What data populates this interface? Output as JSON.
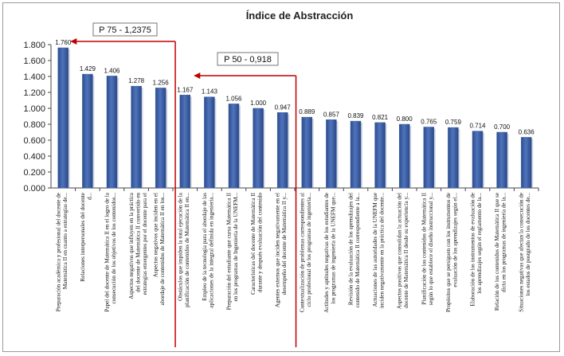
{
  "chart_data": {
    "type": "bar",
    "title": "Índice de Abstracción",
    "ylim": [
      0,
      1.8
    ],
    "yticks": [
      "0.000",
      "0.200",
      "0.400",
      "0.600",
      "0.800",
      "1.000",
      "1.200",
      "1.400",
      "1.600",
      "1.800"
    ],
    "grid": false,
    "legend": "none",
    "bar_color": "#3f62a8",
    "categories": [
      [
        "Preparación académica y profesional del docente de",
        "Matemática II en cuanto a estrategias de..."
      ],
      [
        "Relaciones interpersonales del docente",
        "d..."
      ],
      [
        "Papel del docente de Matemática II en el logro de la",
        "consecución de los objetivos de los contenidos..."
      ],
      [
        "Aspectos negativos que influyen en la práctica",
        "del docente de Matemática II convertido en",
        "estrategias emergentes por el docente para el"
      ],
      [
        "Aspectos negativos que inciden en el",
        "abordaje de contenidos de Matemática II en los..."
      ],
      [
        "Obstáculos que impiden la total ejecución de la",
        "planificación de contenidos de Matemática II en..."
      ],
      [
        "Empleo de la tecnología para el abordaje de las",
        "aplicaciones de la integral definida en ingeniería..."
      ],
      [
        "Preparación del estudiante que cursa Matemática II",
        "en los programas de Ingeniería de la UNEFM..."
      ],
      [
        "Características del docente de Matemática II",
        "durante y después evaluación del contenido"
      ],
      [
        "Agentes externos que inciden negativamente en el",
        "desempeño del docente de Matemática II y..."
      ],
      [
        "Contextualización de problemas correspondientes al",
        "ciclo profesional de los programas de ingeniería..."
      ],
      [
        "Actitudes y aptitudes negativas de los estudiantes de",
        "los programas de ingeniería de la UNEFM que..."
      ],
      [
        "Revisión de la evaluación de los aprendizajes del",
        "contenido de Matemática II correspondiente a la..."
      ],
      [
        "Actuaciones de las autoridades de la UNEFM que",
        "inciden negativamente en la práctica del docente..."
      ],
      [
        "Aspectos positivos que consolidan la actuación del",
        "docente de Matemática II desde su experiencia y..."
      ],
      [
        "Planificación de los contenidos de Matemática II",
        "según lo que establece el diseño instruccional y..."
      ],
      [
        "Propósitos que se persiguen con los instrumentos de",
        "evaluación de los aprendizajes según el..."
      ],
      [
        "Elaboración de los instrumentos de evaluación de",
        "los aprendizajes según el reglamento de la..."
      ],
      [
        "Relación de los contenidos de Matemática II que se",
        "dicta en los programas de ingeniería de la..."
      ],
      [
        "Situaciones negativas que afectan la consecución de",
        "los estados de postgrado de los docentes de..."
      ]
    ],
    "values": [
      1.76,
      1.429,
      1.406,
      1.278,
      1.256,
      1.167,
      1.143,
      1.056,
      1.0,
      0.947,
      0.889,
      0.857,
      0.839,
      0.821,
      0.8,
      0.765,
      0.759,
      0.714,
      0.7,
      0.636
    ],
    "value_labels": [
      "1.760",
      "1.429",
      "1.406",
      "1.278",
      "1.256",
      "1.167",
      "1.143",
      "1.056",
      "1.000",
      "0.947",
      "0.889",
      "0.857",
      "0.839",
      "0.821",
      "0.800",
      "0.765",
      "0.759",
      "0.714",
      "0.700",
      "0.636"
    ],
    "annotations": [
      {
        "text": "P 75 - 1,2375",
        "value": 1.2375,
        "color": "#c00000"
      },
      {
        "text": "P 50 - 0,918",
        "value": 0.918,
        "color": "#c00000"
      }
    ]
  }
}
